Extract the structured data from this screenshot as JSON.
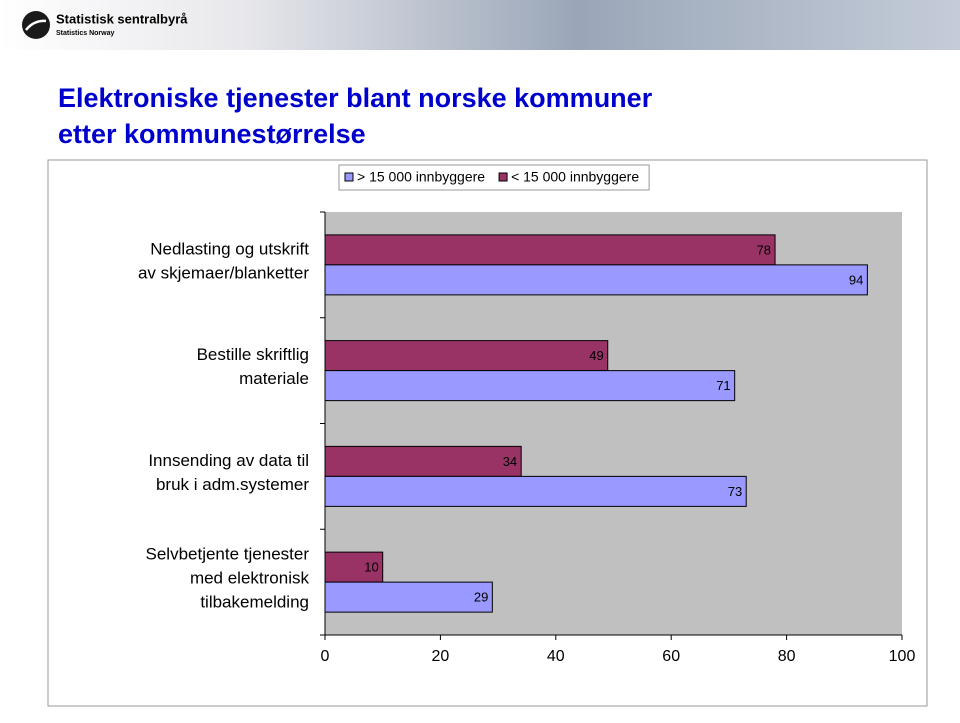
{
  "header": {
    "logo_name": "Statistisk sentralbyrå",
    "logo_subtitle": "Statistics Norway"
  },
  "chart_data": {
    "type": "bar",
    "orientation": "horizontal",
    "title": [
      "Elektroniske tjenester blant norske kommuner",
      "etter kommunestørrelse"
    ],
    "categories": [
      [
        "Nedlasting og utskrift",
        "av skjemaer/blanketter"
      ],
      [
        "Bestille skriftlig",
        "materiale"
      ],
      [
        "Innsending av data til",
        "bruk i adm.systemer"
      ],
      [
        "Selvbetjente tjenester",
        "med elektronisk",
        "tilbakemelding"
      ]
    ],
    "series": [
      {
        "name": "> 15 000 innbyggere",
        "color": "#9999ff",
        "values": [
          94,
          71,
          73,
          29
        ]
      },
      {
        "name": "< 15 000 innbyggere",
        "color": "#993366",
        "values": [
          78,
          49,
          34,
          10
        ]
      }
    ],
    "xlim": [
      0,
      100
    ],
    "xticks": [
      0,
      20,
      40,
      60,
      80,
      100
    ],
    "legend": "top",
    "grid": false
  }
}
